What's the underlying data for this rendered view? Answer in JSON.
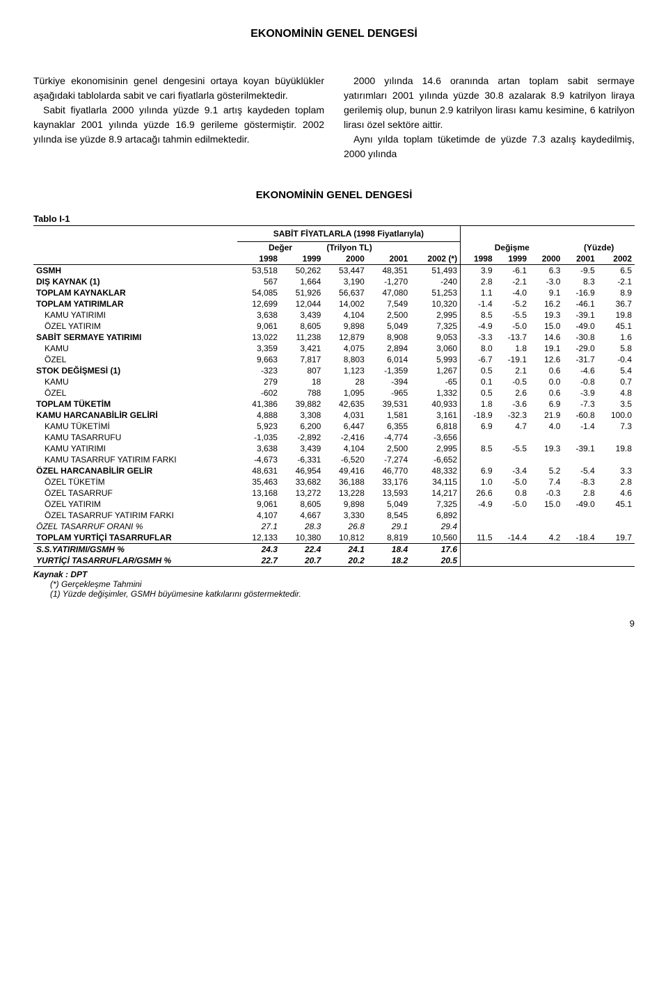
{
  "title": "EKONOMİNİN GENEL DENGESİ",
  "para_left": "Türkiye ekonomisinin genel dengesini ortaya koyan büyüklükler aşağıdaki tablolarda sabit ve cari fiyatlarla gösterilmektedir.\n Sabit fiyatlarla 2000 yılında yüzde 9.1 artış kaydeden toplam kaynaklar 2001 yılında yüzde 16.9 gerileme göstermiştir. 2002 yılında ise yüzde 8.9 artacağı tahmin edilmektedir.",
  "para_right": " 2000 yılında 14.6 oranında artan toplam sabit sermaye yatırımları 2001 yılında yüzde 30.8 azalarak 8.9 katrilyon liraya gerilemiş olup, bunun 2.9 katrilyon lirası kamu kesimine, 6 katrilyon lirası özel sektöre aittir.\n Aynı yılda toplam tüketimde de yüzde 7.3 azalış kaydedilmiş, 2000 yılında",
  "table_title": "EKONOMİNİN GENEL DENGESİ",
  "table_label": "Tablo I-1",
  "table_subtitle": "SABİT FİYATLARLA (1998 Fiyatlarıyla)",
  "header_group_left": "Değer",
  "header_group_left_unit": "(Trilyon TL)",
  "header_group_right": "Değişme",
  "header_group_right_unit": "(Yüzde)",
  "years_left": [
    "1998",
    "1999",
    "2000",
    "2001",
    "2002 (*)"
  ],
  "years_right": [
    "1998",
    "1999",
    "2000",
    "2001",
    "2002"
  ],
  "rows": [
    {
      "label": "GSMH",
      "indent": 0,
      "v": [
        "53,518",
        "50,262",
        "53,447",
        "48,351",
        "51,493"
      ],
      "p": [
        "3.9",
        "-6.1",
        "6.3",
        "-9.5",
        "6.5"
      ]
    },
    {
      "label": "DIŞ KAYNAK (1)",
      "indent": 0,
      "v": [
        "567",
        "1,664",
        "3,190",
        "-1,270",
        "-240"
      ],
      "p": [
        "2.8",
        "-2.1",
        "-3.0",
        "8.3",
        "-2.1"
      ]
    },
    {
      "label": "TOPLAM KAYNAKLAR",
      "indent": 0,
      "v": [
        "54,085",
        "51,926",
        "56,637",
        "47,080",
        "51,253"
      ],
      "p": [
        "1.1",
        "-4.0",
        "9.1",
        "-16.9",
        "8.9"
      ]
    },
    {
      "label": "TOPLAM YATIRIMLAR",
      "indent": 0,
      "v": [
        "12,699",
        "12,044",
        "14,002",
        "7,549",
        "10,320"
      ],
      "p": [
        "-1.4",
        "-5.2",
        "16.2",
        "-46.1",
        "36.7"
      ]
    },
    {
      "label": "KAMU YATIRIMI",
      "indent": 1,
      "v": [
        "3,638",
        "3,439",
        "4,104",
        "2,500",
        "2,995"
      ],
      "p": [
        "8.5",
        "-5.5",
        "19.3",
        "-39.1",
        "19.8"
      ]
    },
    {
      "label": "ÖZEL YATIRIM",
      "indent": 1,
      "v": [
        "9,061",
        "8,605",
        "9,898",
        "5,049",
        "7,325"
      ],
      "p": [
        "-4.9",
        "-5.0",
        "15.0",
        "-49.0",
        "45.1"
      ]
    },
    {
      "label": "SABİT SERMAYE YATIRIMI",
      "indent": 0,
      "v": [
        "13,022",
        "11,238",
        "12,879",
        "8,908",
        "9,053"
      ],
      "p": [
        "-3.3",
        "-13.7",
        "14.6",
        "-30.8",
        "1.6"
      ]
    },
    {
      "label": "KAMU",
      "indent": 1,
      "v": [
        "3,359",
        "3,421",
        "4,075",
        "2,894",
        "3,060"
      ],
      "p": [
        "8.0",
        "1.8",
        "19.1",
        "-29.0",
        "5.8"
      ]
    },
    {
      "label": "ÖZEL",
      "indent": 1,
      "v": [
        "9,663",
        "7,817",
        "8,803",
        "6,014",
        "5,993"
      ],
      "p": [
        "-6.7",
        "-19.1",
        "12.6",
        "-31.7",
        "-0.4"
      ]
    },
    {
      "label": "STOK DEĞİŞMESİ (1)",
      "indent": 0,
      "v": [
        "-323",
        "807",
        "1,123",
        "-1,359",
        "1,267"
      ],
      "p": [
        "0.5",
        "2.1",
        "0.6",
        "-4.6",
        "5.4"
      ]
    },
    {
      "label": "KAMU",
      "indent": 1,
      "v": [
        "279",
        "18",
        "28",
        "-394",
        "-65"
      ],
      "p": [
        "0.1",
        "-0.5",
        "0.0",
        "-0.8",
        "0.7"
      ]
    },
    {
      "label": "ÖZEL",
      "indent": 1,
      "v": [
        "-602",
        "788",
        "1,095",
        "-965",
        "1,332"
      ],
      "p": [
        "0.5",
        "2.6",
        "0.6",
        "-3.9",
        "4.8"
      ]
    },
    {
      "label": "TOPLAM TÜKETİM",
      "indent": 0,
      "v": [
        "41,386",
        "39,882",
        "42,635",
        "39,531",
        "40,933"
      ],
      "p": [
        "1.8",
        "-3.6",
        "6.9",
        "-7.3",
        "3.5"
      ]
    },
    {
      "label": "KAMU HARCANABİLİR GELİRİ",
      "indent": 0,
      "v": [
        "4,888",
        "3,308",
        "4,031",
        "1,581",
        "3,161"
      ],
      "p": [
        "-18.9",
        "-32.3",
        "21.9",
        "-60.8",
        "100.0"
      ]
    },
    {
      "label": "KAMU TÜKETİMİ",
      "indent": 1,
      "v": [
        "5,923",
        "6,200",
        "6,447",
        "6,355",
        "6,818"
      ],
      "p": [
        "6.9",
        "4.7",
        "4.0",
        "-1.4",
        "7.3"
      ]
    },
    {
      "label": "KAMU TASARRUFU",
      "indent": 1,
      "v": [
        "-1,035",
        "-2,892",
        "-2,416",
        "-4,774",
        "-3,656"
      ],
      "p": [
        "",
        "",
        "",
        "",
        ""
      ]
    },
    {
      "label": "KAMU YATIRIMI",
      "indent": 1,
      "v": [
        "3,638",
        "3,439",
        "4,104",
        "2,500",
        "2,995"
      ],
      "p": [
        "8.5",
        "-5.5",
        "19.3",
        "-39.1",
        "19.8"
      ]
    },
    {
      "label": "KAMU TASARRUF YATIRIM FARKI",
      "indent": 1,
      "v": [
        "-4,673",
        "-6,331",
        "-6,520",
        "-7,274",
        "-6,652"
      ],
      "p": [
        "",
        "",
        "",
        "",
        ""
      ]
    },
    {
      "label": "ÖZEL HARCANABİLİR GELİR",
      "indent": 0,
      "v": [
        "48,631",
        "46,954",
        "49,416",
        "46,770",
        "48,332"
      ],
      "p": [
        "6.9",
        "-3.4",
        "5.2",
        "-5.4",
        "3.3"
      ]
    },
    {
      "label": "ÖZEL TÜKETİM",
      "indent": 1,
      "v": [
        "35,463",
        "33,682",
        "36,188",
        "33,176",
        "34,115"
      ],
      "p": [
        "1.0",
        "-5.0",
        "7.4",
        "-8.3",
        "2.8"
      ]
    },
    {
      "label": "ÖZEL TASARRUF",
      "indent": 1,
      "v": [
        "13,168",
        "13,272",
        "13,228",
        "13,593",
        "14,217"
      ],
      "p": [
        "26.6",
        "0.8",
        "-0.3",
        "2.8",
        "4.6"
      ]
    },
    {
      "label": "ÖZEL YATIRIM",
      "indent": 1,
      "v": [
        "9,061",
        "8,605",
        "9,898",
        "5,049",
        "7,325"
      ],
      "p": [
        "-4.9",
        "-5.0",
        "15.0",
        "-49.0",
        "45.1"
      ]
    },
    {
      "label": "ÖZEL TASARRUF YATIRIM FARKI",
      "indent": 1,
      "v": [
        "4,107",
        "4,667",
        "3,330",
        "8,545",
        "6,892"
      ],
      "p": [
        "",
        "",
        "",
        "",
        ""
      ]
    },
    {
      "label": "ÖZEL TASARRUF ORANI %",
      "indent": 0,
      "italic": true,
      "v": [
        "27.1",
        "28.3",
        "26.8",
        "29.1",
        "29.4"
      ],
      "p": [
        "",
        "",
        "",
        "",
        ""
      ]
    },
    {
      "label": "TOPLAM YURTİÇİ TASARRUFLAR",
      "indent": 0,
      "v": [
        "12,133",
        "10,380",
        "10,812",
        "8,819",
        "10,560"
      ],
      "p": [
        "11.5",
        "-14.4",
        "4.2",
        "-18.4",
        "19.7"
      ],
      "section_bottom": true
    }
  ],
  "bottom_rows": [
    {
      "label": "S.S.YATIRIMI/GSMH %",
      "italic": true,
      "v": [
        "24.3",
        "22.4",
        "24.1",
        "18.4",
        "17.6"
      ],
      "section_top": true
    },
    {
      "label": "YURTİÇİ TASARRUFLAR/GSMH %",
      "italic": true,
      "v": [
        "22.7",
        "20.7",
        "20.2",
        "18.2",
        "20.5"
      ],
      "section_bottom": true
    }
  ],
  "footnotes": {
    "src": "Kaynak : DPT",
    "f1": "(*) Gerçekleşme Tahmini",
    "f2": "(1) Yüzde değişimler, GSMH büyümesine katkılarını göstermektedir."
  },
  "page_number": "9"
}
